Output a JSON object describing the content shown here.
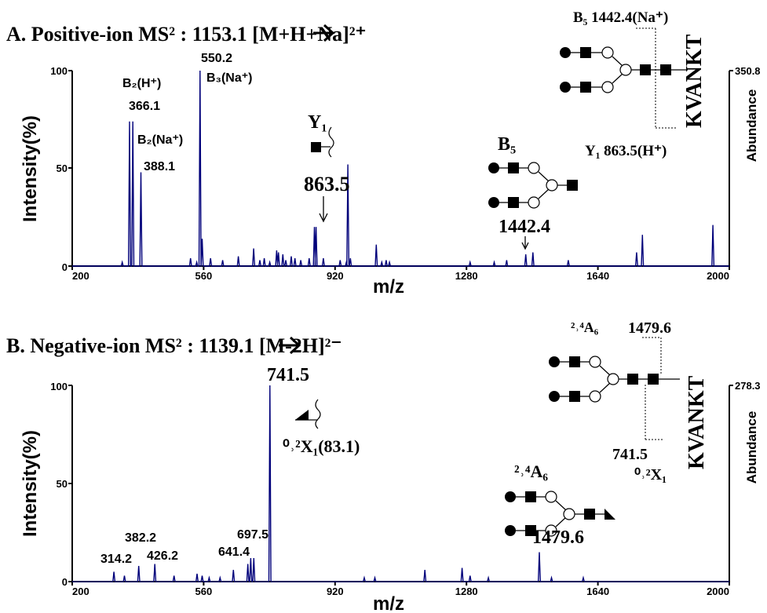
{
  "chart_data": [
    {
      "type": "line",
      "title": "A. Positive-ion MS² : 1153.1 [M+H+Na]²⁺",
      "xlabel": "m/z",
      "ylabel": "Intensity(%)",
      "right_label": "Abundance",
      "right_value": "350.8",
      "xlim": [
        200,
        2000
      ],
      "ylim": [
        0,
        100
      ],
      "x_ticks": [
        "200",
        "560",
        "920",
        "1280",
        "1640",
        "2000"
      ],
      "y_ticks": [
        "0",
        "50",
        "100"
      ],
      "color": "#00007a",
      "peaks": [
        [
          337,
          2
        ],
        [
          357,
          74
        ],
        [
          366.1,
          74
        ],
        [
          388.1,
          48
        ],
        [
          524,
          4
        ],
        [
          541,
          2
        ],
        [
          550.2,
          100
        ],
        [
          556,
          14
        ],
        [
          579,
          4
        ],
        [
          612,
          3
        ],
        [
          655,
          5
        ],
        [
          697,
          9
        ],
        [
          714,
          3
        ],
        [
          726,
          4
        ],
        [
          741,
          2
        ],
        [
          760,
          8
        ],
        [
          765,
          7
        ],
        [
          777,
          6
        ],
        [
          785,
          3
        ],
        [
          800,
          5
        ],
        [
          810,
          4
        ],
        [
          826,
          3
        ],
        [
          849,
          4
        ],
        [
          863.5,
          20
        ],
        [
          868,
          20
        ],
        [
          888,
          4
        ],
        [
          934,
          3
        ],
        [
          951,
          2
        ],
        [
          955,
          52
        ],
        [
          962,
          4
        ],
        [
          1033,
          11
        ],
        [
          1048,
          2
        ],
        [
          1060,
          3
        ],
        [
          1069,
          2
        ],
        [
          1290,
          2
        ],
        [
          1356,
          2
        ],
        [
          1390,
          3
        ],
        [
          1442.4,
          6
        ],
        [
          1462,
          7
        ],
        [
          1559,
          3
        ],
        [
          1746,
          7
        ],
        [
          1762,
          16
        ],
        [
          1955,
          21
        ]
      ],
      "annotations": {
        "b2h": "B₂(H⁺)",
        "b2h_mz": "366.1",
        "b2na": "B₂(Na⁺)",
        "b2na_mz": "388.1",
        "top_mz": "550.2",
        "b3na": "B₃(Na⁺)",
        "y1": "Y₁",
        "y1_mz": "863.5",
        "b5": "B₅",
        "b5_mz": "1442.4",
        "str_b5": "B₅ 1442.4(Na⁺)",
        "str_y1": "Y₁  863.5(H⁺)",
        "peptide": "KVANKT"
      }
    },
    {
      "type": "line",
      "title": "B. Negative-ion MS² : 1139.1 [M-2H]²⁻",
      "xlabel": "m/z",
      "ylabel": "Intensity(%)",
      "right_label": "Abundance",
      "right_value": "278.3",
      "xlim": [
        200,
        2000
      ],
      "ylim": [
        0,
        100
      ],
      "x_ticks": [
        "200",
        "560",
        "920",
        "1280",
        "1640",
        "2000"
      ],
      "y_ticks": [
        "0",
        "50",
        "100"
      ],
      "color": "#00007a",
      "peaks": [
        [
          314.2,
          5
        ],
        [
          343,
          3
        ],
        [
          382.2,
          8
        ],
        [
          426.2,
          9
        ],
        [
          479,
          3
        ],
        [
          542,
          4
        ],
        [
          556,
          3
        ],
        [
          575,
          2
        ],
        [
          605,
          2
        ],
        [
          641.4,
          6
        ],
        [
          681,
          9
        ],
        [
          689,
          12
        ],
        [
          697.5,
          12
        ],
        [
          741.5,
          100
        ],
        [
          1000,
          2
        ],
        [
          1029,
          2
        ],
        [
          1166,
          6
        ],
        [
          1268,
          7
        ],
        [
          1290,
          3
        ],
        [
          1340,
          2
        ],
        [
          1479.6,
          15
        ],
        [
          1513,
          2
        ],
        [
          1600,
          2
        ]
      ],
      "annotations": {
        "x02": "⁰˒²X₁(83.1)",
        "top_mz": "741.5",
        "a6": "²˒⁴A₆",
        "a6_mz": "1479.6",
        "mz_314": "314.2",
        "mz_382": "382.2",
        "mz_426": "426.2",
        "mz_641": "641.4",
        "mz_697": "697.5",
        "str_a6": "²˒⁴A₆",
        "str_a6_mz": "1479.6",
        "str_x1_mz": "741.5",
        "str_x1": "⁰˒²X₁",
        "peptide": "KVANKT"
      }
    }
  ]
}
